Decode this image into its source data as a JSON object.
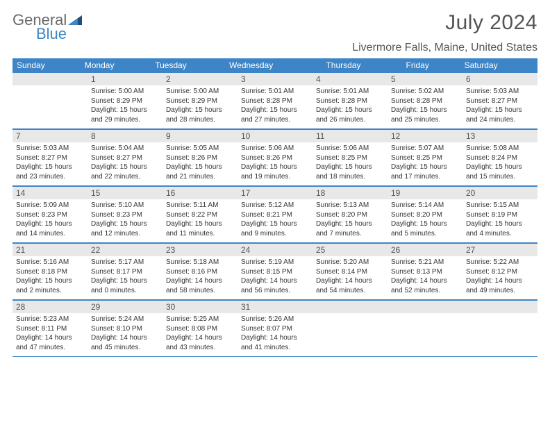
{
  "brand": {
    "part1": "General",
    "part2": "Blue"
  },
  "title": {
    "month_year": "July 2024",
    "location": "Livermore Falls, Maine, United States"
  },
  "colors": {
    "accent": "#3d85c6",
    "header_bg": "#3d85c6",
    "daynum_bg": "#e8e8e8",
    "text": "#333333",
    "bg": "#ffffff"
  },
  "day_names": [
    "Sunday",
    "Monday",
    "Tuesday",
    "Wednesday",
    "Thursday",
    "Friday",
    "Saturday"
  ],
  "weeks": [
    [
      null,
      {
        "n": "1",
        "sunrise": "5:00 AM",
        "sunset": "8:29 PM",
        "day_h": "15",
        "day_m": "29"
      },
      {
        "n": "2",
        "sunrise": "5:00 AM",
        "sunset": "8:29 PM",
        "day_h": "15",
        "day_m": "28"
      },
      {
        "n": "3",
        "sunrise": "5:01 AM",
        "sunset": "8:28 PM",
        "day_h": "15",
        "day_m": "27"
      },
      {
        "n": "4",
        "sunrise": "5:01 AM",
        "sunset": "8:28 PM",
        "day_h": "15",
        "day_m": "26"
      },
      {
        "n": "5",
        "sunrise": "5:02 AM",
        "sunset": "8:28 PM",
        "day_h": "15",
        "day_m": "25"
      },
      {
        "n": "6",
        "sunrise": "5:03 AM",
        "sunset": "8:27 PM",
        "day_h": "15",
        "day_m": "24"
      }
    ],
    [
      {
        "n": "7",
        "sunrise": "5:03 AM",
        "sunset": "8:27 PM",
        "day_h": "15",
        "day_m": "23"
      },
      {
        "n": "8",
        "sunrise": "5:04 AM",
        "sunset": "8:27 PM",
        "day_h": "15",
        "day_m": "22"
      },
      {
        "n": "9",
        "sunrise": "5:05 AM",
        "sunset": "8:26 PM",
        "day_h": "15",
        "day_m": "21"
      },
      {
        "n": "10",
        "sunrise": "5:06 AM",
        "sunset": "8:26 PM",
        "day_h": "15",
        "day_m": "19"
      },
      {
        "n": "11",
        "sunrise": "5:06 AM",
        "sunset": "8:25 PM",
        "day_h": "15",
        "day_m": "18"
      },
      {
        "n": "12",
        "sunrise": "5:07 AM",
        "sunset": "8:25 PM",
        "day_h": "15",
        "day_m": "17"
      },
      {
        "n": "13",
        "sunrise": "5:08 AM",
        "sunset": "8:24 PM",
        "day_h": "15",
        "day_m": "15"
      }
    ],
    [
      {
        "n": "14",
        "sunrise": "5:09 AM",
        "sunset": "8:23 PM",
        "day_h": "15",
        "day_m": "14"
      },
      {
        "n": "15",
        "sunrise": "5:10 AM",
        "sunset": "8:23 PM",
        "day_h": "15",
        "day_m": "12"
      },
      {
        "n": "16",
        "sunrise": "5:11 AM",
        "sunset": "8:22 PM",
        "day_h": "15",
        "day_m": "11"
      },
      {
        "n": "17",
        "sunrise": "5:12 AM",
        "sunset": "8:21 PM",
        "day_h": "15",
        "day_m": "9"
      },
      {
        "n": "18",
        "sunrise": "5:13 AM",
        "sunset": "8:20 PM",
        "day_h": "15",
        "day_m": "7"
      },
      {
        "n": "19",
        "sunrise": "5:14 AM",
        "sunset": "8:20 PM",
        "day_h": "15",
        "day_m": "5"
      },
      {
        "n": "20",
        "sunrise": "5:15 AM",
        "sunset": "8:19 PM",
        "day_h": "15",
        "day_m": "4"
      }
    ],
    [
      {
        "n": "21",
        "sunrise": "5:16 AM",
        "sunset": "8:18 PM",
        "day_h": "15",
        "day_m": "2"
      },
      {
        "n": "22",
        "sunrise": "5:17 AM",
        "sunset": "8:17 PM",
        "day_h": "15",
        "day_m": "0"
      },
      {
        "n": "23",
        "sunrise": "5:18 AM",
        "sunset": "8:16 PM",
        "day_h": "14",
        "day_m": "58"
      },
      {
        "n": "24",
        "sunrise": "5:19 AM",
        "sunset": "8:15 PM",
        "day_h": "14",
        "day_m": "56"
      },
      {
        "n": "25",
        "sunrise": "5:20 AM",
        "sunset": "8:14 PM",
        "day_h": "14",
        "day_m": "54"
      },
      {
        "n": "26",
        "sunrise": "5:21 AM",
        "sunset": "8:13 PM",
        "day_h": "14",
        "day_m": "52"
      },
      {
        "n": "27",
        "sunrise": "5:22 AM",
        "sunset": "8:12 PM",
        "day_h": "14",
        "day_m": "49"
      }
    ],
    [
      {
        "n": "28",
        "sunrise": "5:23 AM",
        "sunset": "8:11 PM",
        "day_h": "14",
        "day_m": "47"
      },
      {
        "n": "29",
        "sunrise": "5:24 AM",
        "sunset": "8:10 PM",
        "day_h": "14",
        "day_m": "45"
      },
      {
        "n": "30",
        "sunrise": "5:25 AM",
        "sunset": "8:08 PM",
        "day_h": "14",
        "day_m": "43"
      },
      {
        "n": "31",
        "sunrise": "5:26 AM",
        "sunset": "8:07 PM",
        "day_h": "14",
        "day_m": "41"
      },
      null,
      null,
      null
    ]
  ],
  "labels": {
    "sunrise": "Sunrise:",
    "sunset": "Sunset:",
    "daylight_pre": "Daylight:",
    "hours_word": "hours",
    "and_word": "and",
    "minutes_word": "minutes."
  }
}
